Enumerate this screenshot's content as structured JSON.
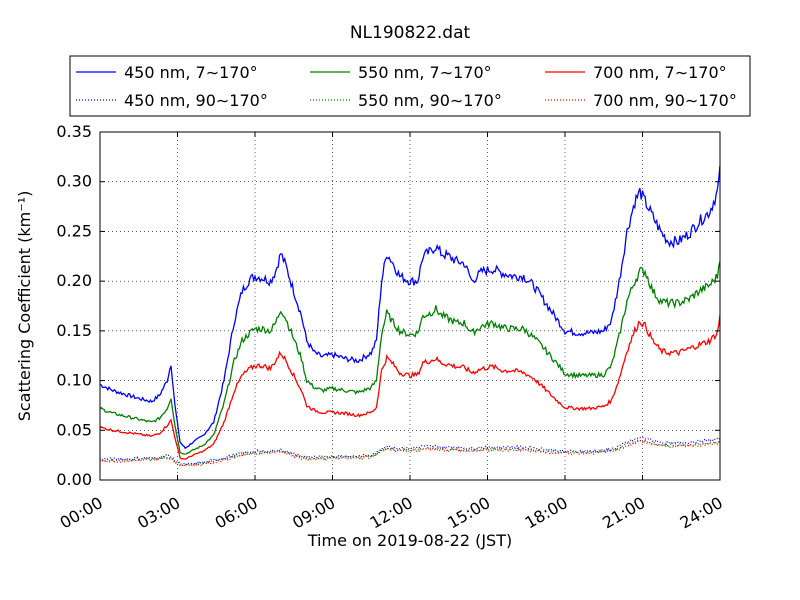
{
  "chart_data": {
    "type": "line",
    "title": "NL190822.dat",
    "xlabel": "Time on 2019-08-22 (JST)",
    "ylabel": "Scattering Coefficient (km⁻¹)",
    "xlim": [
      0,
      24
    ],
    "ylim": [
      0,
      0.35
    ],
    "x_ticks": [
      0,
      3,
      6,
      9,
      12,
      15,
      18,
      21,
      24
    ],
    "x_tick_labels": [
      "00:00",
      "03:00",
      "06:00",
      "09:00",
      "12:00",
      "15:00",
      "18:00",
      "21:00",
      "24:00"
    ],
    "y_ticks": [
      0,
      0.05,
      0.1,
      0.15,
      0.2,
      0.25,
      0.3,
      0.35
    ],
    "y_tick_labels": [
      "0.00",
      "0.05",
      "0.10",
      "0.15",
      "0.20",
      "0.25",
      "0.30",
      "0.35"
    ],
    "grid": true,
    "legend_position": "top",
    "x": [
      0,
      0.5,
      1,
      1.5,
      2,
      2.3,
      2.6,
      2.75,
      2.9,
      3.1,
      3.3,
      3.6,
      4.0,
      4.4,
      4.8,
      5.2,
      5.5,
      5.8,
      6.0,
      6.3,
      6.6,
      6.8,
      7.0,
      7.2,
      7.5,
      7.8,
      8.0,
      8.3,
      8.6,
      9.0,
      9.5,
      10.0,
      10.5,
      10.7,
      10.9,
      11.1,
      11.3,
      11.6,
      12.0,
      12.3,
      12.5,
      12.8,
      13.0,
      13.2,
      13.5,
      13.8,
      14.1,
      14.4,
      14.8,
      15.2,
      15.6,
      16.0,
      16.4,
      16.8,
      17.2,
      17.6,
      18.0,
      18.5,
      19.0,
      19.5,
      19.8,
      20.1,
      20.4,
      20.7,
      20.9,
      21.1,
      21.4,
      21.7,
      22.0,
      22.4,
      22.8,
      23.2,
      23.6,
      23.9,
      24.0
    ],
    "series": [
      {
        "name": "450 nm, 7∼170°",
        "color": "#0000ff",
        "style": "solid",
        "values": [
          0.096,
          0.09,
          0.086,
          0.082,
          0.079,
          0.085,
          0.1,
          0.117,
          0.075,
          0.038,
          0.032,
          0.038,
          0.045,
          0.058,
          0.1,
          0.16,
          0.19,
          0.202,
          0.205,
          0.203,
          0.2,
          0.21,
          0.228,
          0.215,
          0.19,
          0.165,
          0.14,
          0.128,
          0.124,
          0.126,
          0.122,
          0.12,
          0.128,
          0.14,
          0.2,
          0.228,
          0.22,
          0.205,
          0.2,
          0.2,
          0.225,
          0.23,
          0.235,
          0.228,
          0.225,
          0.22,
          0.218,
          0.2,
          0.21,
          0.212,
          0.208,
          0.205,
          0.205,
          0.195,
          0.18,
          0.165,
          0.15,
          0.148,
          0.148,
          0.15,
          0.16,
          0.2,
          0.25,
          0.28,
          0.29,
          0.28,
          0.265,
          0.25,
          0.24,
          0.24,
          0.248,
          0.26,
          0.27,
          0.29,
          0.31
        ]
      },
      {
        "name": "550 nm, 7∼170°",
        "color": "#008000",
        "style": "solid",
        "values": [
          0.072,
          0.067,
          0.064,
          0.061,
          0.058,
          0.062,
          0.072,
          0.083,
          0.055,
          0.028,
          0.026,
          0.03,
          0.035,
          0.045,
          0.077,
          0.12,
          0.14,
          0.148,
          0.152,
          0.152,
          0.15,
          0.158,
          0.172,
          0.162,
          0.142,
          0.122,
          0.1,
          0.093,
          0.09,
          0.092,
          0.09,
          0.088,
          0.093,
          0.1,
          0.147,
          0.168,
          0.16,
          0.15,
          0.146,
          0.148,
          0.165,
          0.168,
          0.172,
          0.166,
          0.162,
          0.158,
          0.158,
          0.148,
          0.155,
          0.158,
          0.153,
          0.152,
          0.152,
          0.143,
          0.132,
          0.12,
          0.107,
          0.105,
          0.105,
          0.106,
          0.115,
          0.145,
          0.18,
          0.2,
          0.21,
          0.21,
          0.19,
          0.18,
          0.178,
          0.178,
          0.182,
          0.19,
          0.196,
          0.205,
          0.225
        ]
      },
      {
        "name": "700 nm, 7∼170°",
        "color": "#ff0000",
        "style": "solid",
        "values": [
          0.053,
          0.05,
          0.048,
          0.046,
          0.044,
          0.047,
          0.055,
          0.06,
          0.043,
          0.022,
          0.021,
          0.025,
          0.029,
          0.036,
          0.058,
          0.09,
          0.105,
          0.112,
          0.115,
          0.115,
          0.112,
          0.12,
          0.128,
          0.12,
          0.105,
          0.09,
          0.075,
          0.07,
          0.068,
          0.068,
          0.067,
          0.065,
          0.068,
          0.073,
          0.11,
          0.123,
          0.118,
          0.108,
          0.105,
          0.106,
          0.118,
          0.12,
          0.122,
          0.118,
          0.116,
          0.114,
          0.113,
          0.108,
          0.112,
          0.114,
          0.11,
          0.11,
          0.108,
          0.102,
          0.092,
          0.082,
          0.073,
          0.072,
          0.072,
          0.074,
          0.08,
          0.102,
          0.13,
          0.15,
          0.16,
          0.155,
          0.14,
          0.13,
          0.128,
          0.128,
          0.132,
          0.136,
          0.14,
          0.148,
          0.165
        ]
      },
      {
        "name": "450 nm, 90∼170°",
        "color": "#0000ff",
        "style": "dotted",
        "values": [
          0.021,
          0.021,
          0.021,
          0.022,
          0.022,
          0.023,
          0.025,
          0.024,
          0.019,
          0.017,
          0.016,
          0.016,
          0.018,
          0.02,
          0.022,
          0.025,
          0.027,
          0.028,
          0.029,
          0.029,
          0.029,
          0.03,
          0.03,
          0.029,
          0.026,
          0.024,
          0.023,
          0.023,
          0.023,
          0.024,
          0.024,
          0.024,
          0.025,
          0.027,
          0.032,
          0.034,
          0.033,
          0.032,
          0.032,
          0.033,
          0.034,
          0.034,
          0.034,
          0.033,
          0.033,
          0.033,
          0.032,
          0.032,
          0.033,
          0.033,
          0.033,
          0.033,
          0.033,
          0.032,
          0.031,
          0.03,
          0.029,
          0.029,
          0.029,
          0.03,
          0.031,
          0.034,
          0.038,
          0.041,
          0.043,
          0.042,
          0.04,
          0.038,
          0.037,
          0.037,
          0.038,
          0.039,
          0.04,
          0.041,
          0.042
        ]
      },
      {
        "name": "550 nm, 90∼170°",
        "color": "#008000",
        "style": "dotted",
        "values": [
          0.02,
          0.02,
          0.02,
          0.021,
          0.021,
          0.022,
          0.023,
          0.022,
          0.018,
          0.016,
          0.015,
          0.016,
          0.017,
          0.019,
          0.021,
          0.024,
          0.026,
          0.027,
          0.028,
          0.028,
          0.028,
          0.029,
          0.029,
          0.028,
          0.025,
          0.023,
          0.022,
          0.022,
          0.022,
          0.023,
          0.023,
          0.023,
          0.024,
          0.026,
          0.03,
          0.032,
          0.031,
          0.03,
          0.03,
          0.031,
          0.032,
          0.032,
          0.032,
          0.031,
          0.031,
          0.031,
          0.03,
          0.03,
          0.031,
          0.031,
          0.031,
          0.031,
          0.031,
          0.03,
          0.029,
          0.028,
          0.028,
          0.028,
          0.028,
          0.029,
          0.03,
          0.032,
          0.036,
          0.038,
          0.04,
          0.039,
          0.037,
          0.036,
          0.035,
          0.035,
          0.036,
          0.036,
          0.037,
          0.038,
          0.039
        ]
      },
      {
        "name": "700 nm, 90∼170°",
        "color": "#ff0000",
        "style": "dotted",
        "values": [
          0.019,
          0.019,
          0.019,
          0.02,
          0.02,
          0.021,
          0.022,
          0.021,
          0.017,
          0.015,
          0.015,
          0.015,
          0.016,
          0.018,
          0.02,
          0.023,
          0.025,
          0.026,
          0.027,
          0.027,
          0.027,
          0.028,
          0.028,
          0.027,
          0.024,
          0.022,
          0.021,
          0.021,
          0.021,
          0.022,
          0.022,
          0.022,
          0.023,
          0.025,
          0.029,
          0.031,
          0.03,
          0.029,
          0.029,
          0.03,
          0.031,
          0.031,
          0.031,
          0.03,
          0.03,
          0.03,
          0.029,
          0.029,
          0.03,
          0.03,
          0.03,
          0.03,
          0.03,
          0.029,
          0.028,
          0.027,
          0.027,
          0.027,
          0.027,
          0.028,
          0.029,
          0.031,
          0.035,
          0.037,
          0.039,
          0.038,
          0.036,
          0.035,
          0.034,
          0.034,
          0.035,
          0.035,
          0.036,
          0.037,
          0.038
        ]
      }
    ]
  }
}
